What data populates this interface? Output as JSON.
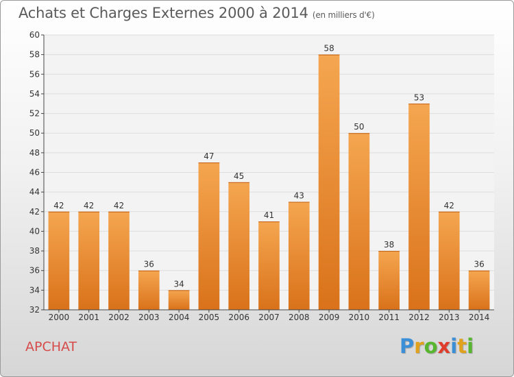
{
  "title": "Achats et Charges Externes 2000 à 2014",
  "unit": "(en milliers d'€)",
  "commune": "APCHAT",
  "logo": {
    "text": "Proxiti",
    "letters": [
      "P",
      "r",
      "o",
      "x",
      "i",
      "t",
      "i"
    ],
    "colors": [
      "#3a8fd6",
      "#e0a21c",
      "#58b52f",
      "#e03c2c",
      "#3a8fd6",
      "#e0a21c",
      "#58b52f"
    ]
  },
  "colors": {
    "bar_top": "#f5a650",
    "bar_bottom": "#d9721a",
    "axis": "#444444",
    "grid": "#dddddd"
  },
  "chart_data": {
    "type": "bar",
    "categories": [
      "2000",
      "2001",
      "2002",
      "2003",
      "2004",
      "2005",
      "2006",
      "2007",
      "2008",
      "2009",
      "2010",
      "2011",
      "2012",
      "2013",
      "2014"
    ],
    "values": [
      42,
      42,
      42,
      36,
      34,
      47,
      45,
      41,
      43,
      58,
      50,
      38,
      53,
      42,
      36
    ],
    "value_labels": [
      "42",
      "42",
      "42",
      "36",
      "34",
      "47",
      "45",
      "41",
      "43",
      "58",
      "50",
      "38",
      "53",
      "42",
      "36"
    ],
    "yticks": [
      "32",
      "34",
      "36",
      "38",
      "40",
      "42",
      "44",
      "46",
      "48",
      "50",
      "52",
      "54",
      "56",
      "58",
      "60"
    ],
    "ylim": [
      32,
      60
    ],
    "xlabel": "",
    "ylabel": "",
    "grid": true
  }
}
